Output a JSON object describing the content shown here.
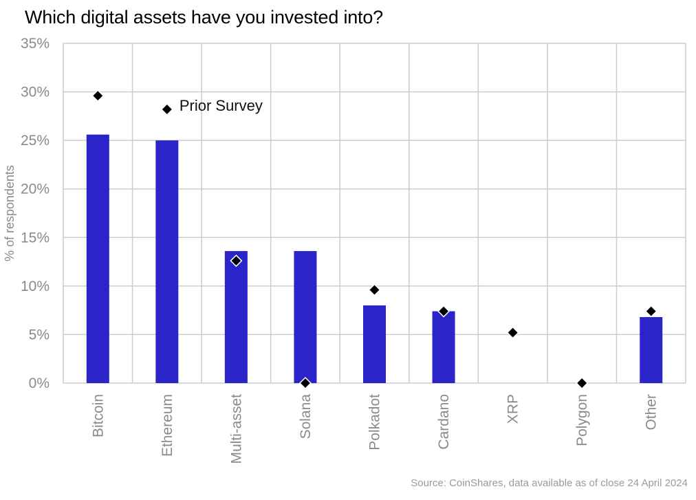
{
  "title": "Which digital assets have you invested into?",
  "source": "Source: CoinShares, data available as of close 24 April 2024",
  "chart_data": {
    "type": "bar",
    "title": "Which digital assets have you invested into?",
    "ylabel": "% of respondents",
    "xlabel": "",
    "ylim": [
      0,
      35
    ],
    "yticks": [
      0,
      5,
      10,
      15,
      20,
      25,
      30,
      35
    ],
    "ytick_labels": [
      "0%",
      "5%",
      "10%",
      "15%",
      "20%",
      "25%",
      "30%",
      "35%"
    ],
    "grid": true,
    "categories": [
      "Bitcoin",
      "Ethereum",
      "Multi-asset",
      "Solana",
      "Polkadot",
      "Cardano",
      "XRP",
      "Polygon",
      "Other"
    ],
    "series": [
      {
        "name": "",
        "kind": "bar",
        "color": "#2b24c9",
        "values": [
          25.6,
          25.0,
          13.6,
          13.6,
          8.0,
          7.4,
          0,
          0,
          6.8
        ]
      },
      {
        "name": "Prior Survey",
        "kind": "marker",
        "marker": "diamond",
        "color": "#000000",
        "values": [
          29.6,
          null,
          12.6,
          0,
          9.6,
          7.4,
          5.2,
          0,
          7.4
        ]
      }
    ],
    "legend": {
      "label": "Prior Survey",
      "placement": "top-left"
    }
  }
}
